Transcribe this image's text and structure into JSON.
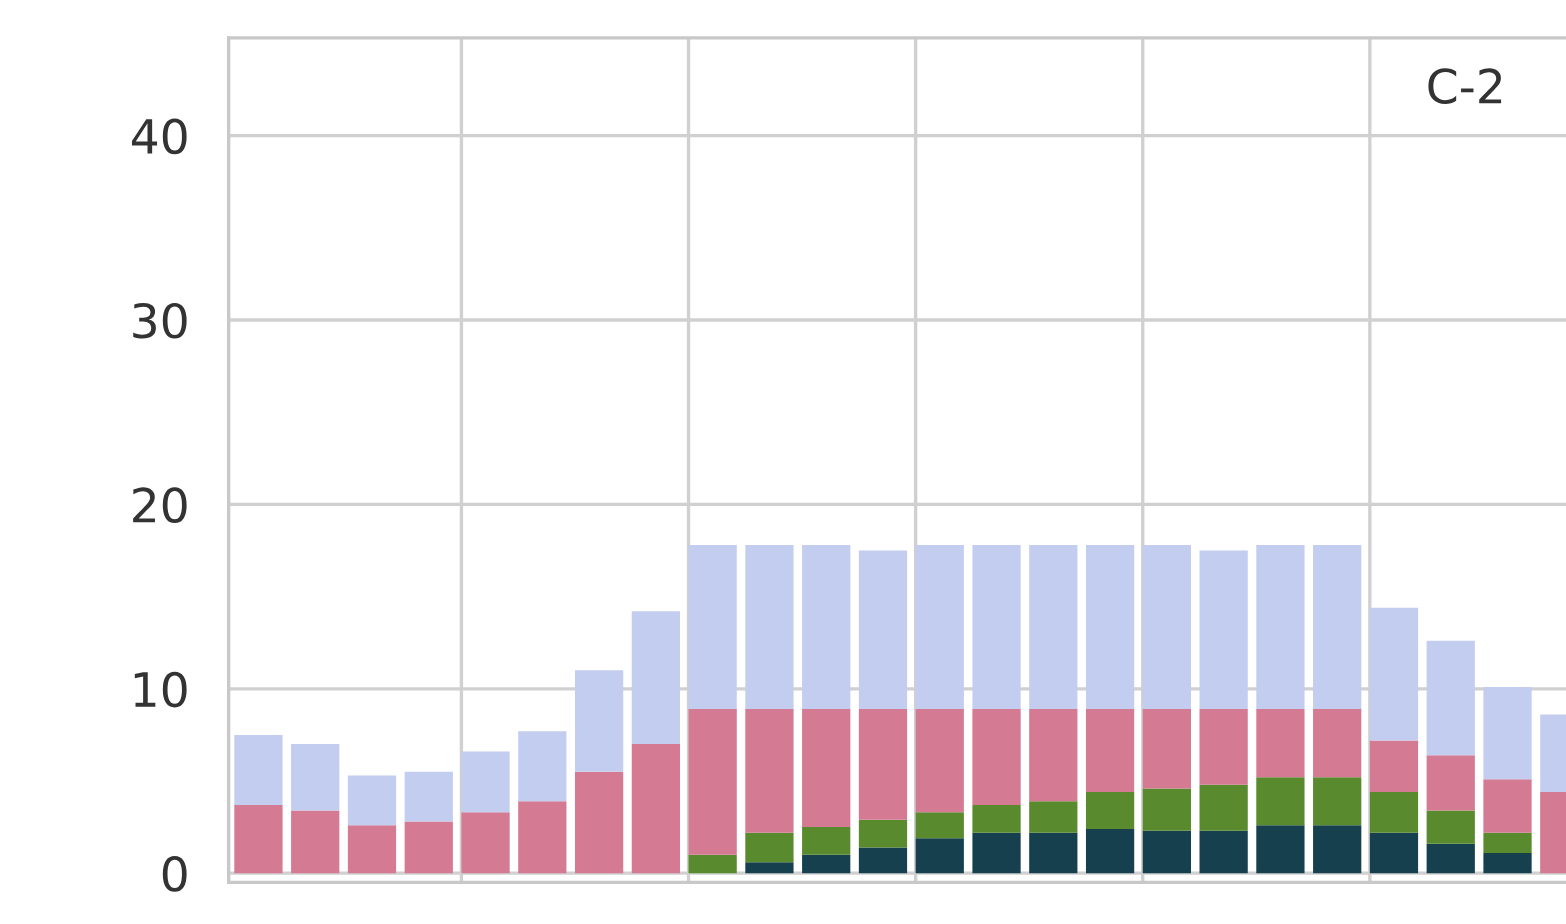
{
  "chart_data": {
    "type": "bar",
    "stacked": true,
    "categories": [
      null,
      null,
      null,
      null,
      null,
      null,
      null,
      null,
      null,
      null,
      null,
      null,
      null,
      null,
      null,
      null,
      null,
      null,
      null,
      null,
      null,
      null,
      null,
      null
    ],
    "series": [
      {
        "color": "#17404f",
        "values": [
          null,
          null,
          null,
          null,
          null,
          null,
          null,
          null,
          null,
          0.6,
          1.0,
          1.4,
          1.9,
          2.2,
          2.2,
          2.4,
          2.3,
          2.3,
          2.6,
          2.6,
          2.2,
          1.6,
          1.1,
          null
        ]
      },
      {
        "color": "#5a8a2e",
        "values": [
          null,
          null,
          null,
          null,
          null,
          null,
          null,
          null,
          1.0,
          1.6,
          1.5,
          1.5,
          1.4,
          1.5,
          1.7,
          2.0,
          2.3,
          2.5,
          2.6,
          2.6,
          2.2,
          1.8,
          1.1,
          null
        ]
      },
      {
        "color": "#d47a92",
        "values": [
          3.7,
          3.4,
          2.6,
          2.8,
          3.3,
          3.9,
          5.5,
          7.0,
          7.9,
          6.7,
          6.4,
          6.0,
          5.6,
          5.2,
          5.0,
          4.5,
          4.3,
          4.1,
          3.7,
          3.7,
          2.8,
          3.0,
          2.9,
          4.4
        ]
      },
      {
        "color": "#c3cdf0",
        "values": [
          3.8,
          3.6,
          2.7,
          2.7,
          3.3,
          3.8,
          5.5,
          7.2,
          8.9,
          8.9,
          8.9,
          8.6,
          8.9,
          8.9,
          8.9,
          8.9,
          8.9,
          8.6,
          8.9,
          8.9,
          7.2,
          6.2,
          5.0,
          4.2
        ]
      }
    ],
    "ylim": [
      -0.5,
      45.3
    ],
    "yticks": [
      0,
      10,
      20,
      30,
      40
    ],
    "grid": true,
    "annotations": [
      "C-2"
    ]
  }
}
